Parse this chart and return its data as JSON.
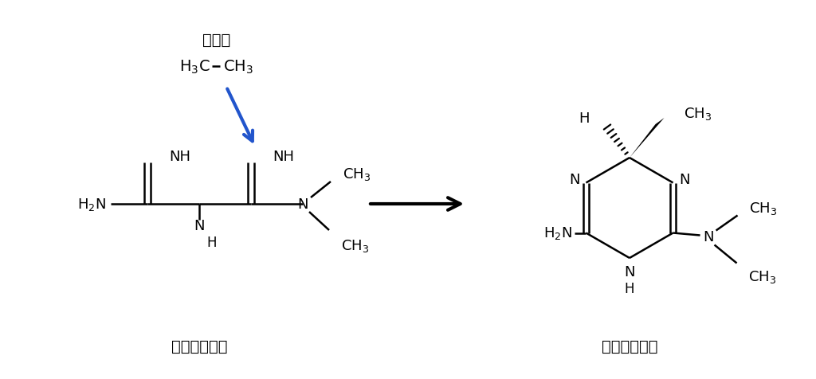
{
  "bg_color": "#ffffff",
  "title_metformin": "メトホルミン",
  "title_imeglimin": "イメグリミン",
  "ethan_label": "エタン",
  "arrow_color": "#2255cc",
  "font_size_label": 13,
  "font_size_title": 14,
  "font_size_ethan": 14
}
